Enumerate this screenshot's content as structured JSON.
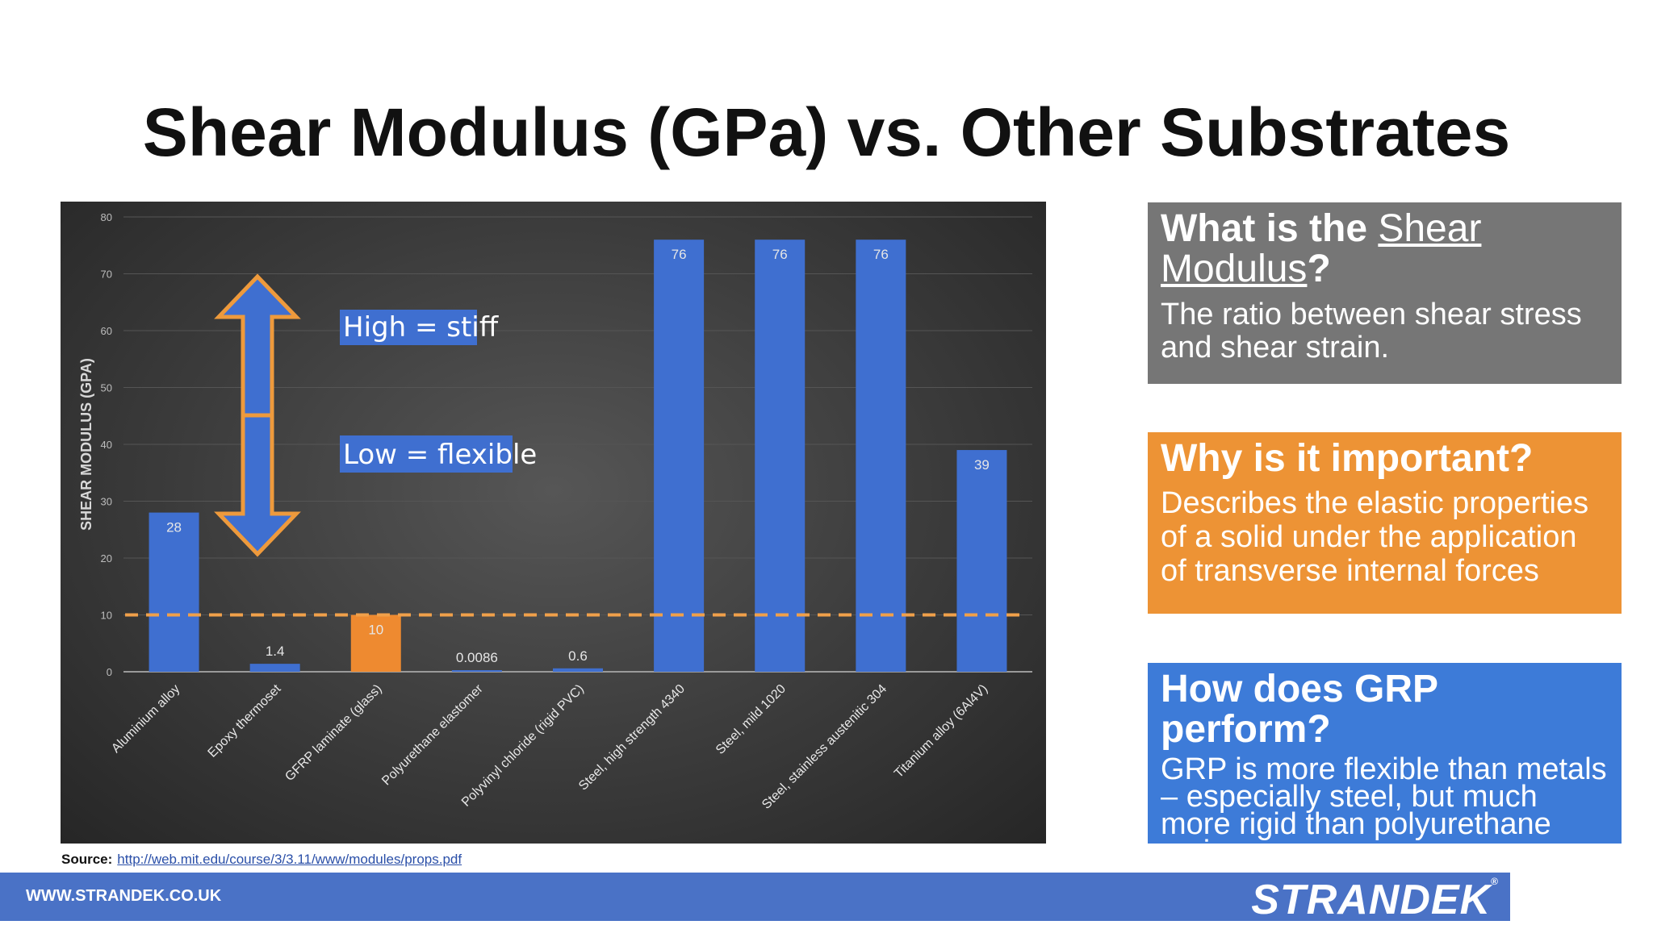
{
  "title": "Shear Modulus (GPa) vs. Other Substrates",
  "chart_data": {
    "type": "bar",
    "ylabel": "SHEAR MODULUS (GPA)",
    "xlabel": "",
    "ylim": [
      0,
      80
    ],
    "yticks": [
      0,
      10,
      20,
      30,
      40,
      50,
      60,
      70,
      80
    ],
    "grid": true,
    "categories": [
      "Aluminium alloy",
      "Epoxy thermoset",
      "GFRP laminate (glass)",
      "Polyurethane elastomer",
      "Polyvinyl chloride (rigid PVC)",
      "Steel, high strength 4340",
      "Steel, mild 1020",
      "Steel, stainless austenitic 304",
      "Titanium alloy (6Al4V)"
    ],
    "values": [
      28,
      1.4,
      10,
      0.0086,
      0.6,
      76,
      76,
      76,
      39
    ],
    "data_labels": [
      "28",
      "1.4",
      "10",
      "0.0086",
      "0.6",
      "76",
      "76",
      "76",
      "39"
    ],
    "highlight_category": "GFRP laminate (glass)",
    "reference_line": 10,
    "annotations": [
      "High = stiff",
      "Low = flexible"
    ],
    "colors": {
      "bar": "#3f6fd0",
      "highlight": "#ee8a30",
      "reference_line": "#f0a04a",
      "arrow_fill": "#3f6fd0",
      "arrow_stroke": "#ee9a3c"
    }
  },
  "info_boxes": {
    "what": {
      "heading_prefix": "What is the ",
      "heading_link1": "Shear",
      "heading_link2": "Modulus",
      "heading_suffix": "?",
      "body": "The ratio between shear stress and shear strain."
    },
    "why": {
      "heading": "Why is it important?",
      "body": "Describes the elastic properties of a solid under the application of transverse internal forces"
    },
    "how": {
      "heading": "How does GRP perform?",
      "body": "GRP is more flexible than metals – especially steel, but much more rigid than polyurethane resin."
    }
  },
  "source": {
    "label": "Source:",
    "url": "http://web.mit.edu/course/3/3.11/www/modules/props.pdf"
  },
  "footer": {
    "url": "WWW.STRANDEK.CO.UK",
    "logo": "STRANDEK",
    "logo_mark": "®"
  }
}
